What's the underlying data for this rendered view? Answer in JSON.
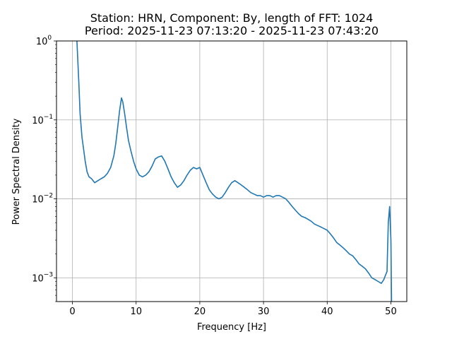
{
  "chart_data": {
    "type": "line",
    "title_line1": "Station: HRN, Component: By, length of FFT: 1024",
    "title_line2": "Period: 2025-11-23 07:13:20 - 2025-11-23 07:43:20",
    "xlabel": "Frequency [Hz]",
    "ylabel": "Power Spectral Density",
    "xlim": [
      -2.5,
      52.5
    ],
    "ylim": [
      0.0005,
      1
    ],
    "yscale": "log",
    "grid": true,
    "x_ticks": [
      "0",
      "10",
      "20",
      "30",
      "40",
      "50"
    ],
    "y_ticks": [
      {
        "base": "10",
        "exp": "−3"
      },
      {
        "base": "10",
        "exp": "−2"
      },
      {
        "base": "10",
        "exp": "−1"
      },
      {
        "base": "10",
        "exp": "0"
      }
    ],
    "series": [
      {
        "color": "#1f77b4",
        "x": [
          0.7,
          1.0,
          1.2,
          1.5,
          1.8,
          2.0,
          2.3,
          2.6,
          3.0,
          3.5,
          4.0,
          4.5,
          5.0,
          5.5,
          6.0,
          6.5,
          6.8,
          7.1,
          7.4,
          7.7,
          7.9,
          8.2,
          8.5,
          8.8,
          9.2,
          9.6,
          10.0,
          10.5,
          11.0,
          11.5,
          12.0,
          12.5,
          13.0,
          13.5,
          14.0,
          14.5,
          15.0,
          15.5,
          16.0,
          16.5,
          17.0,
          17.5,
          18.0,
          18.5,
          19.0,
          19.5,
          20.0,
          20.5,
          21.0,
          21.5,
          22.0,
          22.5,
          23.0,
          23.5,
          24.0,
          24.5,
          25.0,
          25.5,
          26.0,
          26.5,
          27.0,
          27.5,
          28.0,
          28.5,
          29.0,
          29.5,
          30.0,
          30.5,
          31.0,
          31.5,
          32.0,
          32.5,
          33.0,
          33.5,
          34.0,
          34.5,
          35.0,
          35.5,
          36.0,
          36.5,
          37.0,
          37.5,
          38.0,
          38.5,
          39.0,
          39.5,
          40.0,
          40.5,
          41.0,
          41.5,
          42.0,
          42.5,
          43.0,
          43.5,
          44.0,
          44.5,
          45.0,
          45.5,
          46.0,
          46.5,
          47.0,
          47.5,
          48.0,
          48.5,
          48.9,
          49.2,
          49.4,
          49.6,
          49.8,
          50.0,
          50.1
        ],
        "y": [
          1.0,
          0.3,
          0.12,
          0.06,
          0.04,
          0.03,
          0.022,
          0.019,
          0.018,
          0.016,
          0.017,
          0.018,
          0.019,
          0.021,
          0.025,
          0.035,
          0.05,
          0.08,
          0.13,
          0.19,
          0.17,
          0.12,
          0.08,
          0.055,
          0.04,
          0.03,
          0.024,
          0.02,
          0.019,
          0.02,
          0.022,
          0.026,
          0.032,
          0.034,
          0.035,
          0.03,
          0.024,
          0.019,
          0.016,
          0.014,
          0.015,
          0.017,
          0.02,
          0.023,
          0.025,
          0.024,
          0.025,
          0.02,
          0.016,
          0.013,
          0.0115,
          0.0105,
          0.01,
          0.0105,
          0.012,
          0.014,
          0.016,
          0.017,
          0.016,
          0.015,
          0.014,
          0.013,
          0.012,
          0.0115,
          0.011,
          0.011,
          0.0105,
          0.011,
          0.011,
          0.0105,
          0.011,
          0.011,
          0.0105,
          0.01,
          0.009,
          0.008,
          0.0072,
          0.0065,
          0.006,
          0.0058,
          0.0055,
          0.0052,
          0.0048,
          0.0046,
          0.0044,
          0.0042,
          0.004,
          0.0036,
          0.0032,
          0.0028,
          0.0026,
          0.0024,
          0.0022,
          0.002,
          0.0019,
          0.0017,
          0.0015,
          0.0014,
          0.0013,
          0.00115,
          0.001,
          0.00095,
          0.0009,
          0.00085,
          0.00095,
          0.0011,
          0.0012,
          0.005,
          0.008,
          0.003,
          0.0005
        ]
      }
    ]
  }
}
